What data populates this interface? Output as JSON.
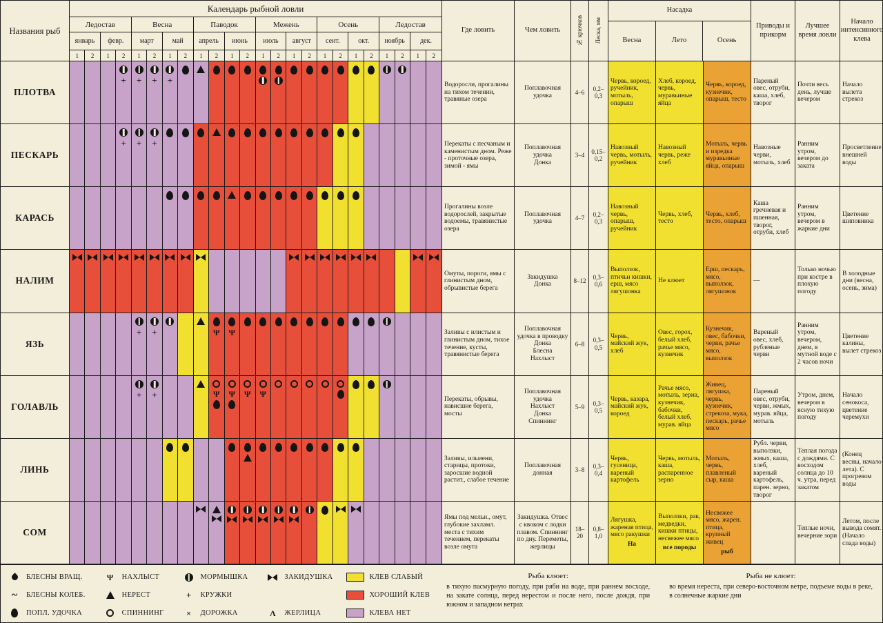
{
  "colors": {
    "P": "#c7a3c9",
    "Y": "#f1e030",
    "R": "#e84f3a",
    "orange": "#eba234",
    "cream": "#f3eed9",
    "line": "#1b1b1b"
  },
  "calendar": {
    "title": "Календарь рыбной ловли",
    "fish_header": "Названия рыб",
    "seasons": [
      {
        "label": "Ледостав",
        "months": [
          "январь",
          "февр."
        ]
      },
      {
        "label": "Весна",
        "months": [
          "март",
          "май"
        ]
      },
      {
        "label": "Паводок",
        "months": [
          "апрель",
          "июнь"
        ]
      },
      {
        "label": "Межень",
        "months": [
          "июль",
          "август"
        ]
      },
      {
        "label": "Осень",
        "months": [
          "сент.",
          "окт."
        ]
      },
      {
        "label": "Ледостав",
        "months": [
          "ноябрь",
          "дек."
        ]
      }
    ],
    "half_labels": [
      "1",
      "2"
    ],
    "color_key": {
      "P": "клева нет",
      "Y": "клев слабый",
      "R": "хороший клев"
    },
    "rows": [
      {
        "fish": "ПЛОТВА",
        "pattern": "PPPPPPPPPRRRRRRRRRYYPPPP",
        "symbols": {
          "3": [
            "morm",
            "kru"
          ],
          "4": [
            "morm",
            "kru"
          ],
          "5": [
            "morm",
            "kru"
          ],
          "6": [
            "morm",
            "kru"
          ],
          "7": [
            "popl"
          ],
          "8": [
            "nerest"
          ],
          "9": [
            "popl"
          ],
          "10": [
            "popl"
          ],
          "11": [
            "popl"
          ],
          "12": [
            "popl",
            "morm"
          ],
          "13": [
            "popl",
            "morm"
          ],
          "14": [
            "popl"
          ],
          "15": [
            "popl"
          ],
          "16": [
            "popl"
          ],
          "17": [
            "popl"
          ],
          "18": [
            "popl"
          ],
          "19": [
            "popl"
          ],
          "20": [
            "morm"
          ],
          "21": [
            "morm"
          ]
        }
      },
      {
        "fish": "ПЕСКАРЬ",
        "pattern": "PPPPPPPPRRRRRRRRRYYPPPPP",
        "symbols": {
          "3": [
            "morm",
            "kru"
          ],
          "4": [
            "morm",
            "kru"
          ],
          "5": [
            "morm",
            "kru"
          ],
          "6": [
            "popl"
          ],
          "7": [
            "popl"
          ],
          "8": [
            "popl"
          ],
          "9": [
            "nerest"
          ],
          "10": [
            "popl"
          ],
          "11": [
            "popl"
          ],
          "12": [
            "popl"
          ],
          "13": [
            "popl"
          ],
          "14": [
            "popl"
          ],
          "15": [
            "popl"
          ],
          "16": [
            "popl"
          ],
          "17": [
            "popl"
          ],
          "18": [
            "popl"
          ]
        }
      },
      {
        "fish": "КАРАСЬ",
        "pattern": "PPPPPPPPRRRRRRRRYYYPPPPP",
        "symbols": {
          "6": [
            "popl"
          ],
          "7": [
            "popl"
          ],
          "8": [
            "popl"
          ],
          "9": [
            "popl"
          ],
          "10": [
            "nerest"
          ],
          "11": [
            "popl"
          ],
          "12": [
            "popl"
          ],
          "13": [
            "popl"
          ],
          "14": [
            "popl"
          ],
          "15": [
            "popl"
          ],
          "16": [
            "popl"
          ],
          "17": [
            "popl"
          ],
          "18": [
            "popl"
          ]
        }
      },
      {
        "fish": "НАЛИМ",
        "pattern": "RRRRRRRRYPPPPPRRRRRRRYRR",
        "symbols": {
          "0": [
            "zakid"
          ],
          "1": [
            "zakid"
          ],
          "2": [
            "zakid"
          ],
          "3": [
            "zakid"
          ],
          "4": [
            "zakid"
          ],
          "5": [
            "zakid"
          ],
          "6": [
            "zakid"
          ],
          "7": [
            "zakid"
          ],
          "8": [
            "zakid"
          ],
          "14": [
            "zakid"
          ],
          "15": [
            "zakid"
          ],
          "16": [
            "zakid"
          ],
          "17": [
            "zakid"
          ],
          "18": [
            "zakid"
          ],
          "19": [
            "zakid"
          ],
          "22": [
            "zakid"
          ],
          "23": [
            "zakid"
          ]
        }
      },
      {
        "fish": "ЯЗЬ",
        "pattern": "PPPPPPPYYRRRRRRRRRPPPPPP",
        "symbols": {
          "4": [
            "morm",
            "kru"
          ],
          "5": [
            "morm",
            "kru"
          ],
          "6": [
            "morm"
          ],
          "8": [
            "nerest"
          ],
          "9": [
            "popl",
            "nakhlyst"
          ],
          "10": [
            "popl",
            "nakhlyst"
          ],
          "11": [
            "popl"
          ],
          "12": [
            "popl"
          ],
          "13": [
            "popl"
          ],
          "14": [
            "popl"
          ],
          "15": [
            "popl"
          ],
          "16": [
            "popl"
          ],
          "17": [
            "popl"
          ],
          "18": [
            "popl"
          ],
          "19": [
            "popl"
          ],
          "20": [
            "morm"
          ]
        }
      },
      {
        "fish": "ГОЛАВЛЬ",
        "pattern": "PPPPPPPPYRRRRRRRRRYYPPPP",
        "symbols": {
          "4": [
            "morm",
            "kru"
          ],
          "5": [
            "morm",
            "kru"
          ],
          "8": [
            "nerest"
          ],
          "9": [
            "spin",
            "nakhlyst",
            "popl"
          ],
          "10": [
            "spin",
            "nakhlyst",
            "popl"
          ],
          "11": [
            "spin",
            "nakhlyst"
          ],
          "12": [
            "spin",
            "nakhlyst"
          ],
          "13": [
            "spin"
          ],
          "14": [
            "spin"
          ],
          "15": [
            "spin"
          ],
          "16": [
            "spin"
          ],
          "17": [
            "spin",
            "popl"
          ],
          "18": [
            "popl"
          ],
          "19": [
            "popl"
          ],
          "20": [
            "morm"
          ]
        }
      },
      {
        "fish": "ЛИНЬ",
        "pattern": "PPPPPPYYPPRRRRRRRYYPPPPP",
        "symbols": {
          "6": [
            "popl"
          ],
          "7": [
            "popl"
          ],
          "10": [
            "popl"
          ],
          "11": [
            "popl",
            "nerest"
          ],
          "12": [
            "popl"
          ],
          "13": [
            "popl"
          ],
          "14": [
            "popl"
          ],
          "15": [
            "popl"
          ],
          "16": [
            "popl"
          ],
          "17": [
            "popl"
          ],
          "18": [
            "popl"
          ]
        }
      },
      {
        "fish": "СОМ",
        "pattern": "PPPPPPPPPPRRRRRRYYPPPPPP",
        "symbols": {
          "8": [
            "zakid"
          ],
          "9": [
            "nerest",
            "zakid"
          ],
          "10": [
            "morm",
            "zakid"
          ],
          "11": [
            "morm",
            "zakid"
          ],
          "12": [
            "morm",
            "zakid"
          ],
          "13": [
            "morm",
            "zakid"
          ],
          "14": [
            "morm",
            "zakid"
          ],
          "15": [
            "morm"
          ],
          "16": [
            "popl"
          ],
          "17": [
            "zakid"
          ],
          "18": [
            "zakid"
          ]
        }
      }
    ]
  },
  "info": {
    "headers": {
      "where": "Где ловить",
      "with": "Чем ловить",
      "hooks": "№ крючков",
      "line": "Леска, мм",
      "bait": "Насадка",
      "bait_sub": [
        "Весна",
        "Лето",
        "Осень"
      ],
      "feed": "Приводы и прикорм",
      "best_time": "Лучшее время ловли",
      "start": "Начало интенсивного клева"
    },
    "rows": [
      {
        "where": "Водоросли, прогалины на тихом течении, травяные озера",
        "tackle": "Поплавочная удочка",
        "hooks": "4–6",
        "line": "0,2–0,3",
        "spring": "Червь, короед, ручейник, мотыль, опарыш",
        "summer": "Хлеб, короед, червь, муравьиные яйца",
        "autumn": "Червь, короед, кузнечик, опарыш, тесто",
        "feed": "Пареный овес, отруби, каша, хлеб, творог",
        "best_time": "Почти весь день, лучше вечером",
        "start": "Начало вылета стрекоз"
      },
      {
        "where": "Перекаты с песчаным и каменистым дном. Реже - проточные озера, зимой - ямы",
        "tackle": "Поплавочная удочка\nДонка",
        "hooks": "3–4",
        "line": "0,15–0,2",
        "spring": "Навозный червь, мотыль, ручейник",
        "summer": "Навозный червь, реже хлеб",
        "autumn": "Мотыль, червь и изредка муравьиные яйца, опарыш",
        "feed": "Навозные черви, мотыль, хлеб",
        "best_time": "Ранним утром, вечером до заката",
        "start": "Просветление внешней воды"
      },
      {
        "where": "Прогалины возле водорослей, закрытые водоемы, травянистые озера",
        "tackle": "Поплавочная удочка",
        "hooks": "4–7",
        "line": "0,2–0,3",
        "spring": "Навозный червь, опарыш, ручейник",
        "summer": "Червь, хлеб, тесто",
        "autumn": "Червь, хлеб, тесто, опарыш",
        "feed": "Каша гречневая и пшенная, творог, отруби, хлеб",
        "best_time": "Ранним утром, вечером в жаркие дни",
        "start": "Цветение шиповника"
      },
      {
        "where": "Омуты, пороги, ямы с глинистым дном, обрывистые берега",
        "tackle": "Закидушка\nДонка",
        "hooks": "8–12",
        "line": "0,3–0,6",
        "spring": "Выползок, птичьи кишки, ерш, мясо лягушонка",
        "summer": "Не клюет",
        "autumn": "Ерш, пескарь, мясо, выползок, лягушонок",
        "feed": "—",
        "best_time": "Только ночью при костре в плохую погоду",
        "start": "В холодные дни (весна, осень, зима)"
      },
      {
        "where": "Заливы с илистым и глинистым дном, тихое течение, кусты, травянистые берега",
        "tackle": "Поплавочная удочка в проводку\nДонка\nБлесна\nНахлыст",
        "hooks": "6–8",
        "line": "0,3–0,5",
        "spring": "Червь, майский жук, хлеб",
        "summer": "Овес, горох, белый хлеб, рачье мясо, кузнечик",
        "autumn": "Кузнечик, овес, бабочки, черви, рачье мясо, выползок",
        "feed": "Вареный овес, хлеб, рубленые черви",
        "best_time": "Ранним утром, вечером, днем, в мутной воде с 2 часов ночи",
        "start": "Цветение калины, вылет стрекоз"
      },
      {
        "where": "Перекаты, обрывы, нависшие берега, мосты",
        "tackle": "Поплавочная удочка\nНахлыст\nДонка\nСпиннинг",
        "hooks": "5–9",
        "line": "0,3–0,5",
        "spring": "Червь, казара, майский жук, короед",
        "summer": "Рачье мясо, мотыль, зерна, кузнечик, бабочки, белый хлеб, мурав. яйца",
        "autumn": "Живец, лягушка, червь, кузнечик, стрекоза, мука, пескарь, рачье мясо",
        "feed": "Пареный овес, отруби, черви, жмых, мурав. яйца, мотыль",
        "best_time": "Утром, днем, вечером в ясную тихую погоду",
        "start": "Начало сенокоса, цветение черемухи"
      },
      {
        "where": "Заливы, ильмени, старицы, протоки, заросшие водной растит., слабое течение",
        "tackle": "Поплавочная\nдонная",
        "hooks": "3–8",
        "line": "0,3–0,4",
        "spring": "Червь, гусеница, вареный картофель",
        "summer": "Червь, мотыль, каша, распаренное зерно",
        "autumn": "Мотыль, червь, плавленый сыр, каша",
        "feed": "Рубл. черви, выползки, жмых, каша, хлеб, вареный картофель, парен. зерно, творог",
        "best_time": "Теплая погода с дождями. С восходом солнца до 10 ч. утра, перед закатом",
        "start": "(Конец весны, начало лета). С прогревом воды"
      },
      {
        "where": "Ямы под мельн., омут, глубокие захламл. места с тихим течением, перекаты возле омута",
        "tackle": "Закидушка. Отвес с квоком с лодки плавом. Спиннинг по дну. Переметы, жерлицы",
        "hooks": "18–20",
        "line": "0,8–1,0",
        "spring": "Лягушка, жареная птица, мясо ракушки",
        "summer": "Выползки, рак, медведки, кишки птицы, несвежее мясо",
        "autumn": "Несвежее мясо, жарен. птица, крупный живец",
        "feed": "",
        "best_time": "Теплые ночи, вечерние зори",
        "start": "Летом, после вывода сомят. (Начало спада воды)",
        "bait_footer": [
          "На",
          "все породы",
          "рыб"
        ]
      }
    ]
  },
  "legend": {
    "symbol_groups": [
      [
        {
          "icon": "bl-vr",
          "label": "БЛЕСНЫ ВРАЩ."
        },
        {
          "icon": "bl-kol",
          "label": "БЛЕСНЫ КОЛЕБ."
        },
        {
          "icon": "popl",
          "label": "ПОПЛ. УДОЧКА"
        }
      ],
      [
        {
          "icon": "nakhlyst",
          "label": "НАХЛЫСТ"
        },
        {
          "icon": "nerest",
          "label": "НЕРЕСТ"
        },
        {
          "icon": "spin",
          "label": "СПИННИНГ"
        }
      ],
      [
        {
          "icon": "morm",
          "label": "МОРМЫШКА"
        },
        {
          "icon": "kru",
          "label": "КРУЖКИ"
        },
        {
          "icon": "dor",
          "label": "ДОРОЖКА"
        }
      ],
      [
        {
          "icon": "zakid",
          "label": "ЗАКИДУШКА"
        },
        {
          "icon": "zher",
          "label": "ЖЕРЛИЦА"
        }
      ]
    ],
    "color_items": [
      {
        "color": "Y",
        "label": "КЛЕВ СЛАБЫЙ"
      },
      {
        "color": "R",
        "label": "ХОРОШИЙ КЛЕВ"
      },
      {
        "color": "P",
        "label": "КЛЕВА НЕТ"
      }
    ],
    "bites": {
      "title": "Рыба клюет:",
      "text": "в тихую пасмурную погоду, при ряби на воде, при раннем восходе, на закате солнца, перед нерестом и после него, после дождя, при южном и западном ветрах"
    },
    "no_bites": {
      "title": "Рыба не клюет:",
      "text": "во время нереста, при северо-восточном ветре, подъеме воды в реке, в солнечные жаркие дни"
    }
  }
}
